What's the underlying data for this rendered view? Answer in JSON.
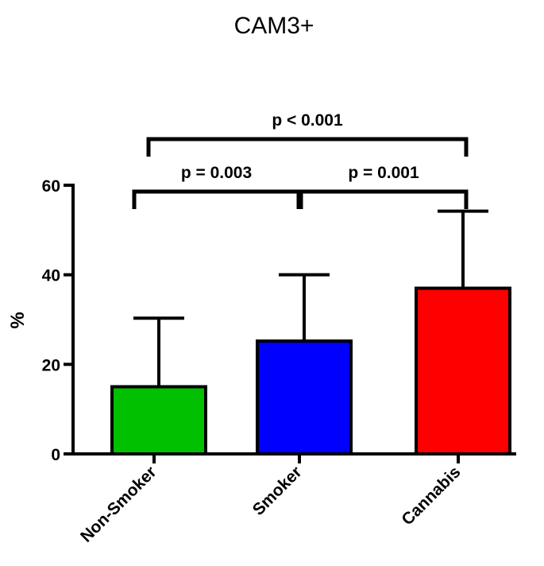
{
  "chart_data": {
    "type": "bar",
    "title": "CAM3+",
    "xlabel": "",
    "ylabel": "%",
    "ylim": [
      0,
      60
    ],
    "yticks": [
      0,
      20,
      40,
      60
    ],
    "categories": [
      "Non-Smoker",
      "Smoker",
      "Cannabis"
    ],
    "values": [
      15,
      25.2,
      37
    ],
    "error_upper": [
      30.3,
      40,
      54.2
    ],
    "colors": [
      "#00c000",
      "#0000ff",
      "#ff0000"
    ],
    "grid": false,
    "legend": "none",
    "annotations": [
      {
        "text": "p = 0.003",
        "from": 0,
        "to": 1,
        "level": 1
      },
      {
        "text": "p = 0.001",
        "from": 1,
        "to": 2,
        "level": 1
      },
      {
        "text": "p < 0.001",
        "from": 0,
        "to": 2,
        "level": 2
      }
    ]
  }
}
